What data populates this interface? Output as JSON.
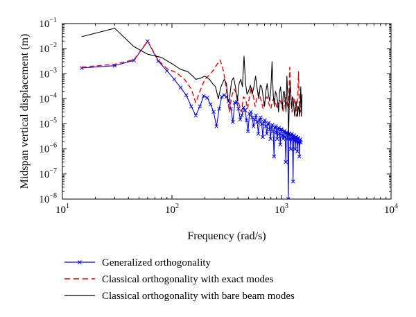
{
  "chart_data": {
    "type": "line",
    "title": "",
    "xlabel": "Frequency (rad/s)",
    "ylabel": "Midspan vertical displacement (m)",
    "xscale": "log",
    "yscale": "log",
    "xlim": [
      10,
      10000
    ],
    "ylim": [
      1e-08,
      0.1
    ],
    "x_ticks": [
      {
        "base": "10",
        "exp": "1"
      },
      {
        "base": "10",
        "exp": "2"
      },
      {
        "base": "10",
        "exp": "3"
      },
      {
        "base": "10",
        "exp": "4"
      }
    ],
    "y_ticks": [
      {
        "base": "10",
        "exp": "−1"
      },
      {
        "base": "10",
        "exp": "−2"
      },
      {
        "base": "10",
        "exp": "−3"
      },
      {
        "base": "10",
        "exp": "−4"
      },
      {
        "base": "10",
        "exp": "−5"
      },
      {
        "base": "10",
        "exp": "−6"
      },
      {
        "base": "10",
        "exp": "−7"
      },
      {
        "base": "10",
        "exp": "−8"
      }
    ],
    "grid": false,
    "legend_position": "below plot",
    "series": [
      {
        "name": "Generalized orthogonality",
        "color": "#0000ee",
        "style": "solid",
        "marker": "x",
        "points": [
          [
            15,
            0.0017
          ],
          [
            30,
            0.0021
          ],
          [
            45,
            0.0034
          ],
          [
            60,
            0.0195
          ],
          [
            75,
            0.0032
          ],
          [
            90,
            0.0013
          ],
          [
            105,
            0.0006
          ],
          [
            120,
            0.00028
          ],
          [
            135,
            0.00014
          ],
          [
            150,
            5e-05
          ],
          [
            165,
            2.15e-05
          ],
          [
            180,
            5e-05
          ],
          [
            195,
            0.00013
          ],
          [
            210,
            0.00011
          ],
          [
            225,
            6e-05
          ],
          [
            240,
            3e-05
          ],
          [
            255,
            8e-06
          ],
          [
            270,
            4e-05
          ],
          [
            285,
            0.00012
          ],
          [
            300,
            0.00014
          ],
          [
            315,
            0.00012
          ],
          [
            330,
            8e-05
          ],
          [
            345,
            4e-05
          ],
          [
            360,
            1.2e-05
          ],
          [
            375,
            7e-05
          ],
          [
            390,
            7.5e-05
          ],
          [
            405,
            4e-05
          ],
          [
            420,
            1.5e-05
          ],
          [
            435,
            2.2e-05
          ],
          [
            450,
            4.5e-05
          ],
          [
            465,
            3.5e-05
          ],
          [
            480,
            1.4e-05
          ],
          [
            495,
            5e-06
          ],
          [
            510,
            2.5e-05
          ],
          [
            525,
            3e-05
          ],
          [
            540,
            1.8e-05
          ],
          [
            555,
            8e-06
          ],
          [
            570,
            1.5e-05
          ],
          [
            585,
            2.2e-05
          ],
          [
            600,
            1.2e-05
          ],
          [
            615,
            4e-06
          ],
          [
            630,
            1.4e-05
          ],
          [
            645,
            1.8e-05
          ],
          [
            660,
            1e-05
          ],
          [
            675,
            3e-06
          ],
          [
            690,
            1.2e-05
          ],
          [
            705,
            1.4e-05
          ],
          [
            720,
            8e-06
          ],
          [
            735,
            4e-06
          ],
          [
            750,
            1e-05
          ],
          [
            765,
            1.1e-05
          ],
          [
            780,
            6e-06
          ],
          [
            795,
            2.5e-06
          ],
          [
            810,
            8e-06
          ],
          [
            825,
            9e-06
          ],
          [
            840,
            5e-06
          ],
          [
            855,
            5e-07
          ],
          [
            870,
            7e-06
          ],
          [
            885,
            8e-06
          ],
          [
            900,
            4.5e-06
          ],
          [
            915,
            2.5e-06
          ],
          [
            930,
            6e-06
          ],
          [
            945,
            7e-06
          ],
          [
            960,
            4e-06
          ],
          [
            975,
            1.5e-06
          ],
          [
            990,
            6e-06
          ],
          [
            1005,
            6e-06
          ],
          [
            1020,
            3.5e-06
          ],
          [
            1035,
            2.5e-06
          ],
          [
            1050,
            5e-06
          ],
          [
            1065,
            5.2e-06
          ],
          [
            1080,
            3e-06
          ],
          [
            1095,
            3e-07
          ],
          [
            1110,
            4.5e-06
          ],
          [
            1125,
            4.5e-06
          ],
          [
            1140,
            2.5e-06
          ],
          [
            1155,
            1e-08
          ],
          [
            1170,
            4e-06
          ],
          [
            1185,
            4.2e-06
          ],
          [
            1200,
            2.5e-06
          ],
          [
            1215,
            1e-06
          ],
          [
            1230,
            3.5e-06
          ],
          [
            1245,
            4e-06
          ],
          [
            1260,
            2.5e-06
          ],
          [
            1275,
            5e-08
          ],
          [
            1290,
            3e-06
          ],
          [
            1305,
            3.5e-06
          ],
          [
            1320,
            2.2e-06
          ],
          [
            1335,
            1e-06
          ],
          [
            1350,
            3e-06
          ],
          [
            1365,
            3e-06
          ],
          [
            1380,
            2e-06
          ],
          [
            1395,
            8e-07
          ],
          [
            1410,
            2.5e-06
          ],
          [
            1425,
            2.8e-06
          ],
          [
            1440,
            1.8e-06
          ],
          [
            1455,
            5e-07
          ],
          [
            1470,
            2e-06
          ],
          [
            1485,
            2.4e-06
          ],
          [
            1500,
            1.8e-06
          ]
        ]
      },
      {
        "name": "Classical orthogonality with exact modes",
        "color": "#ee0000",
        "style": "dashed",
        "marker": "none",
        "points": [
          [
            15,
            0.0018
          ],
          [
            30,
            0.0024
          ],
          [
            45,
            0.0036
          ],
          [
            60,
            0.02
          ],
          [
            75,
            0.0035
          ],
          [
            90,
            0.0016
          ],
          [
            110,
            0.0011
          ],
          [
            130,
            0.0006
          ],
          [
            150,
            0.00025
          ],
          [
            165,
            7e-05
          ],
          [
            180,
            0.0002
          ],
          [
            200,
            0.0006
          ],
          [
            220,
            0.0009
          ],
          [
            240,
            0.0014
          ],
          [
            260,
            0.0025
          ],
          [
            275,
            0.0035
          ],
          [
            290,
            0.0018
          ],
          [
            305,
            0.0006
          ],
          [
            320,
            0.00012
          ],
          [
            335,
            3e-05
          ],
          [
            350,
            0.00012
          ],
          [
            370,
            0.00025
          ],
          [
            390,
            0.00015
          ],
          [
            410,
            6e-05
          ],
          [
            430,
            3e-05
          ],
          [
            450,
            0.00012
          ],
          [
            470,
            0.0001
          ],
          [
            490,
            4e-05
          ],
          [
            510,
            0.00012
          ],
          [
            530,
            0.0003
          ],
          [
            550,
            0.00015
          ],
          [
            575,
            5e-05
          ],
          [
            600,
            0.00012
          ],
          [
            625,
            0.00018
          ],
          [
            650,
            9e-05
          ],
          [
            680,
            4e-05
          ],
          [
            710,
            0.0001
          ],
          [
            740,
            0.00012
          ],
          [
            770,
            6e-05
          ],
          [
            800,
            4e-05
          ],
          [
            830,
            9e-05
          ],
          [
            860,
            0.0001
          ],
          [
            890,
            6e-05
          ],
          [
            920,
            4e-05
          ],
          [
            950,
            9e-05
          ],
          [
            980,
            8e-05
          ],
          [
            1010,
            5e-05
          ],
          [
            1040,
            3e-05
          ],
          [
            1070,
            8e-05
          ],
          [
            1100,
            0.00015
          ],
          [
            1130,
            6e-05
          ],
          [
            1160,
            4e-05
          ],
          [
            1190,
            0.0018
          ],
          [
            1220,
            8e-05
          ],
          [
            1250,
            3e-05
          ],
          [
            1280,
            6e-05
          ],
          [
            1310,
            0.0001
          ],
          [
            1340,
            5e-05
          ],
          [
            1370,
            2e-05
          ],
          [
            1400,
            5e-05
          ],
          [
            1430,
            0.0012
          ],
          [
            1460,
            5e-05
          ],
          [
            1490,
            3e-05
          ],
          [
            1510,
            5e-05
          ]
        ]
      },
      {
        "name": "Classical orthogonality with bare beam modes",
        "color": "#000000",
        "style": "solid",
        "marker": "none",
        "points": [
          [
            15,
            0.03
          ],
          [
            30,
            0.065
          ],
          [
            45,
            0.012
          ],
          [
            60,
            0.006
          ],
          [
            80,
            0.0045
          ],
          [
            100,
            0.0025
          ],
          [
            120,
            0.0015
          ],
          [
            140,
            0.0012
          ],
          [
            155,
            0.0008
          ],
          [
            165,
            0.0006
          ],
          [
            180,
            0.00065
          ],
          [
            200,
            0.0008
          ],
          [
            220,
            0.0006
          ],
          [
            235,
            0.0004
          ],
          [
            250,
            0.0003
          ],
          [
            265,
            0.0001
          ],
          [
            280,
            0.0003
          ],
          [
            300,
            0.0006
          ],
          [
            315,
            0.0004
          ],
          [
            325,
            8e-05
          ],
          [
            335,
            0.0001
          ],
          [
            350,
            0.0005
          ],
          [
            365,
            0.0007
          ],
          [
            380,
            0.0003
          ],
          [
            395,
            8e-05
          ],
          [
            410,
            0.0004
          ],
          [
            425,
            0.0006
          ],
          [
            440,
            0.0003
          ],
          [
            455,
            0.005
          ],
          [
            470,
            0.0004
          ],
          [
            485,
            0.00015
          ],
          [
            500,
            0.0002
          ],
          [
            520,
            0.00035
          ],
          [
            540,
            0.00015
          ],
          [
            560,
            0.0003
          ],
          [
            580,
            0.0008
          ],
          [
            600,
            0.00025
          ],
          [
            620,
            0.0001
          ],
          [
            640,
            0.00035
          ],
          [
            660,
            0.0003
          ],
          [
            680,
            0.00012
          ],
          [
            700,
            5e-05
          ],
          [
            720,
            0.0002
          ],
          [
            740,
            0.0004
          ],
          [
            760,
            0.00015
          ],
          [
            780,
            8e-05
          ],
          [
            800,
            0.00025
          ],
          [
            820,
            0.003
          ],
          [
            840,
            0.00015
          ],
          [
            860,
            5e-05
          ],
          [
            880,
            0.0002
          ],
          [
            900,
            0.00015
          ],
          [
            920,
            8e-05
          ],
          [
            940,
            3e-05
          ],
          [
            960,
            0.00018
          ],
          [
            980,
            0.0003
          ],
          [
            1000,
            0.00012
          ],
          [
            1020,
            4e-05
          ],
          [
            1040,
            0.00018
          ],
          [
            1060,
            0.0002
          ],
          [
            1080,
            8e-05
          ],
          [
            1100,
            3e-05
          ],
          [
            1120,
            0.0008
          ],
          [
            1140,
            0.00015
          ],
          [
            1160,
            3e-06
          ],
          [
            1180,
            0.0001
          ],
          [
            1200,
            0.00045
          ],
          [
            1220,
            0.00012
          ],
          [
            1240,
            4e-05
          ],
          [
            1260,
            0.00012
          ],
          [
            1280,
            0.0001
          ],
          [
            1300,
            4e-05
          ],
          [
            1320,
            2e-05
          ],
          [
            1340,
            5e-05
          ],
          [
            1360,
            8e-05
          ],
          [
            1380,
            4e-05
          ],
          [
            1400,
            2e-05
          ],
          [
            1420,
            4e-05
          ],
          [
            1440,
            5e-05
          ],
          [
            1460,
            2e-05
          ],
          [
            1480,
            5e-05
          ],
          [
            1500,
            0.0003
          ],
          [
            1520,
            2e-05
          ],
          [
            1540,
            0.00015
          ]
        ]
      }
    ]
  }
}
